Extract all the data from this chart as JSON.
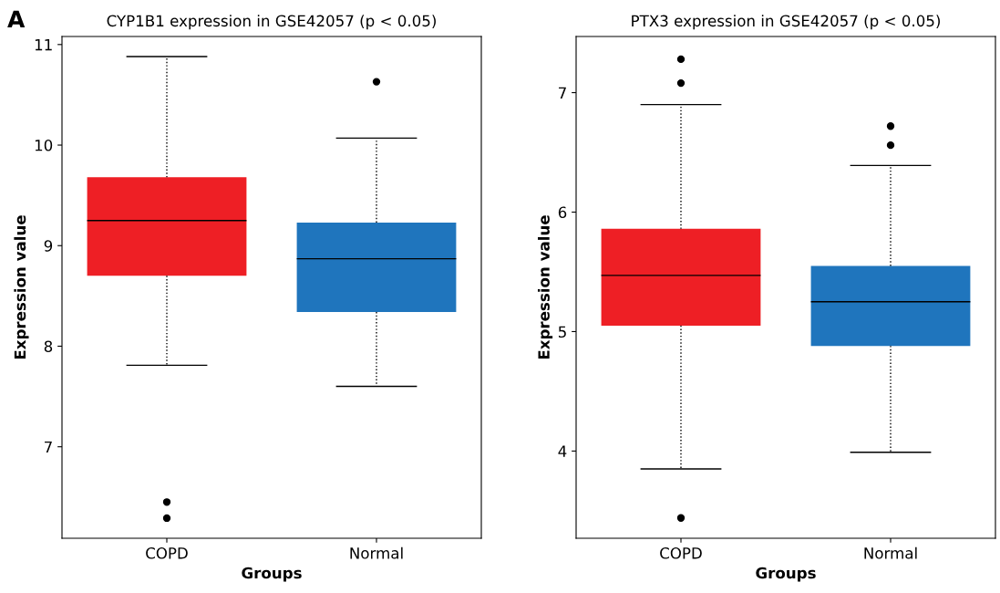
{
  "chart_data": [
    {
      "type": "box",
      "title": "CYP1B1 expression in GSE42057 (p < 0.05)",
      "xlabel": "Groups",
      "ylabel": "Expression value",
      "annotations": [
        "A"
      ],
      "categories": [
        "COPD",
        "Normal"
      ],
      "colors": [
        "#ee1f25",
        "#1f75bd"
      ],
      "boxes": [
        {
          "low": 7.81,
          "q1": 8.7,
          "median": 9.25,
          "q3": 9.68,
          "high": 10.88,
          "outliers": [
            6.45,
            6.29
          ]
        },
        {
          "low": 7.6,
          "q1": 8.34,
          "median": 8.87,
          "q3": 9.23,
          "high": 10.07,
          "outliers": [
            10.63
          ]
        }
      ],
      "ylim": [
        6.09,
        11.08
      ],
      "yticks": [
        7,
        8,
        9,
        10,
        11
      ],
      "grid": false,
      "line_style": "dotted"
    },
    {
      "type": "box",
      "title": "PTX3 expression in GSE42057 (p < 0.05)",
      "xlabel": "Groups",
      "ylabel": "Expression value",
      "categories": [
        "COPD",
        "Normal"
      ],
      "colors": [
        "#ee1f25",
        "#1f75bd"
      ],
      "boxes": [
        {
          "low": 3.85,
          "q1": 5.05,
          "median": 5.47,
          "q3": 5.86,
          "high": 6.9,
          "outliers": [
            7.28,
            7.08,
            3.44
          ]
        },
        {
          "low": 3.99,
          "q1": 4.88,
          "median": 5.25,
          "q3": 5.55,
          "high": 6.39,
          "outliers": [
            6.72,
            6.56
          ]
        }
      ],
      "ylim": [
        3.27,
        7.47
      ],
      "yticks": [
        4,
        5,
        6,
        7
      ],
      "grid": false,
      "line_style": "dotted"
    }
  ]
}
